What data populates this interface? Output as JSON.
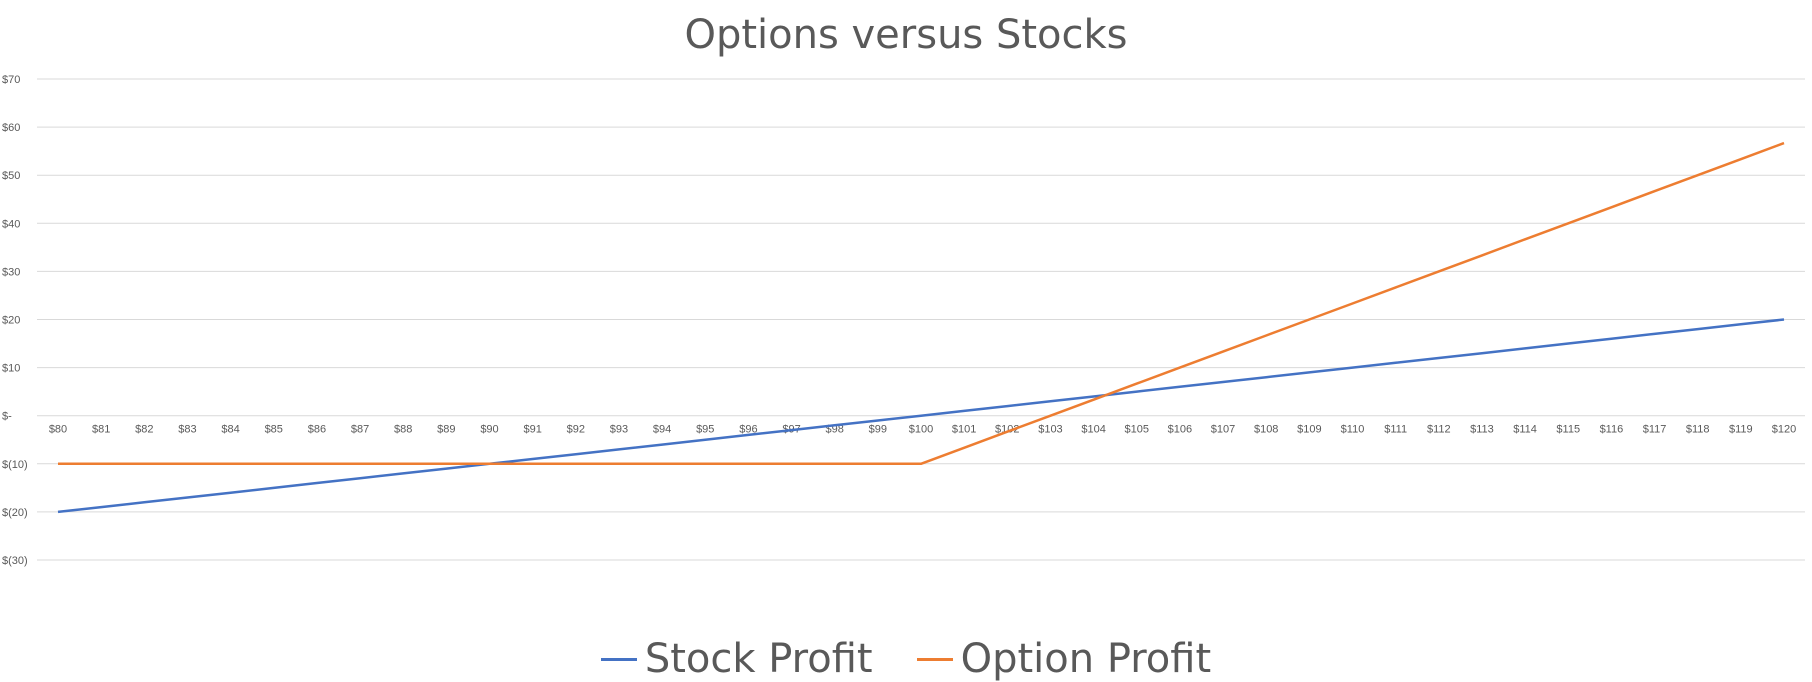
{
  "chart_data": {
    "type": "line",
    "title": "Options versus Stocks",
    "xlabel": "",
    "ylabel": "",
    "categories": [
      "$80",
      "$81",
      "$82",
      "$83",
      "$84",
      "$85",
      "$86",
      "$87",
      "$88",
      "$89",
      "$90",
      "$91",
      "$92",
      "$93",
      "$94",
      "$95",
      "$96",
      "$97",
      "$98",
      "$99",
      "$100",
      "$101",
      "$102",
      "$103",
      "$104",
      "$105",
      "$106",
      "$107",
      "$108",
      "$109",
      "$110",
      "$111",
      "$112",
      "$113",
      "$114",
      "$115",
      "$116",
      "$117",
      "$118",
      "$119",
      "$120"
    ],
    "ylim": [
      -30,
      70
    ],
    "yticks": [
      70,
      60,
      50,
      40,
      30,
      20,
      10,
      0,
      -10,
      -20,
      -30
    ],
    "ytick_labels": [
      "$70",
      "$60",
      "$50",
      "$40",
      "$30",
      "$20",
      "$10",
      "$-",
      "$(10)",
      "$(20)",
      "$(30)"
    ],
    "grid": true,
    "legend": "bottom",
    "series": [
      {
        "name": "Stock Profit",
        "color": "#4472C4",
        "values": [
          -20,
          -19,
          -18,
          -17,
          -16,
          -15,
          -14,
          -13,
          -12,
          -11,
          -10,
          -9,
          -8,
          -7,
          -6,
          -5,
          -4,
          -3,
          -2,
          -1,
          0,
          1,
          2,
          3,
          4,
          5,
          6,
          7,
          8,
          9,
          10,
          11,
          12,
          13,
          14,
          15,
          16,
          17,
          18,
          19,
          20
        ]
      },
      {
        "name": "Option Profit",
        "color": "#ED7D31",
        "values": [
          -10,
          -10,
          -10,
          -10,
          -10,
          -10,
          -10,
          -10,
          -10,
          -10,
          -10,
          -10,
          -10,
          -10,
          -10,
          -10,
          -10,
          -10,
          -10,
          -10,
          -10,
          -6.67,
          -3.33,
          0,
          3.33,
          6.67,
          10,
          13.33,
          16.67,
          20,
          23.33,
          26.67,
          30,
          33.33,
          36.67,
          40,
          43.33,
          46.67,
          50,
          53.33,
          56.67
        ]
      }
    ]
  }
}
